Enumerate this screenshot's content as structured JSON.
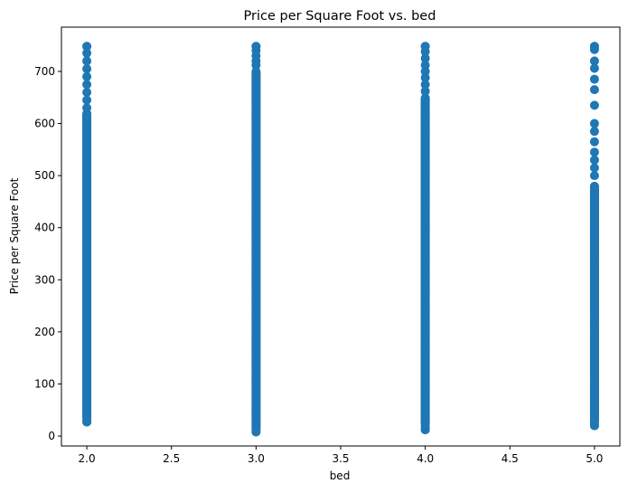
{
  "chart_data": {
    "type": "scatter",
    "title": "Price per Square Foot vs. bed",
    "xlabel": "bed",
    "ylabel": "Price per Square Foot",
    "xlim": [
      1.85,
      5.15
    ],
    "ylim": [
      -19,
      785
    ],
    "x_ticks": [
      2.0,
      2.5,
      3.0,
      3.5,
      4.0,
      4.5,
      5.0
    ],
    "x_tick_labels": [
      "2.0",
      "2.5",
      "3.0",
      "3.5",
      "4.0",
      "4.5",
      "5.0"
    ],
    "y_ticks": [
      0,
      100,
      200,
      300,
      400,
      500,
      600,
      700
    ],
    "y_tick_labels": [
      "0",
      "100",
      "200",
      "300",
      "400",
      "500",
      "600",
      "700"
    ],
    "grid": false,
    "legend": "none",
    "marker_color": "#1f77b4",
    "series": [
      {
        "x_value": 2.0,
        "y_min": 27,
        "y_max": 748,
        "dense_range": [
          35,
          620
        ],
        "outliers": [
          748,
          735,
          720,
          705,
          690,
          675,
          660,
          645,
          630
        ]
      },
      {
        "x_value": 3.0,
        "y_min": 8,
        "y_max": 748,
        "dense_range": [
          15,
          700
        ],
        "outliers": [
          748,
          740,
          730,
          720,
          712
        ]
      },
      {
        "x_value": 4.0,
        "y_min": 12,
        "y_max": 748,
        "dense_range": [
          25,
          650
        ],
        "outliers": [
          748,
          738,
          725,
          712,
          700,
          688,
          675,
          662
        ]
      },
      {
        "x_value": 5.0,
        "y_min": 20,
        "y_max": 748,
        "dense_range": [
          30,
          480
        ],
        "outliers": [
          748,
          742,
          720,
          706,
          685,
          665,
          635,
          600,
          585,
          565,
          545,
          530,
          515,
          500
        ]
      }
    ]
  }
}
